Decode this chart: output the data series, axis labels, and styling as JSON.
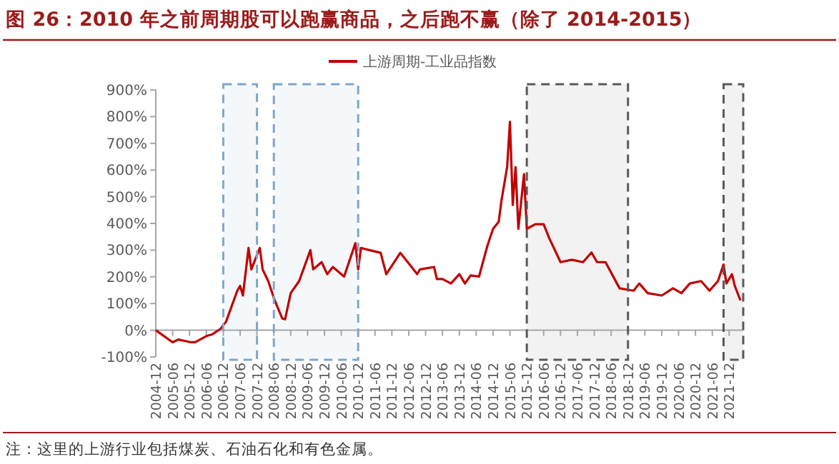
{
  "chart_data": {
    "type": "line",
    "title": "图 26：2010 年之前周期股可以跑赢商品，之后跑不赢（除了 2014-2015）",
    "annotations": [
      "注：这里的上游行业包括煤炭、石油石化和有色金属。"
    ],
    "legend": "top",
    "grid": false,
    "marker": "none",
    "line_style": "solid",
    "xlim": [
      "2004-12",
      "2022-05"
    ],
    "xticks": [
      "2004-12",
      "2005-06",
      "2005-12",
      "2006-06",
      "2006-12",
      "2007-06",
      "2007-12",
      "2008-06",
      "2008-12",
      "2009-06",
      "2009-12",
      "2010-06",
      "2010-12",
      "2011-06",
      "2011-12",
      "2012-06",
      "2012-12",
      "2013-06",
      "2013-12",
      "2014-06",
      "2014-12",
      "2015-06",
      "2015-12",
      "2016-06",
      "2016-12",
      "2017-06",
      "2017-12",
      "2018-06",
      "2018-12",
      "2019-06",
      "2019-12",
      "2020-06",
      "2020-12",
      "2021-06",
      "2021-12"
    ],
    "ylim": [
      -100,
      900
    ],
    "yticks": [
      {
        "value": -100,
        "label": "-100%"
      },
      {
        "value": 0,
        "label": "0%"
      },
      {
        "value": 100,
        "label": "100%"
      },
      {
        "value": 200,
        "label": "200%"
      },
      {
        "value": 300,
        "label": "300%"
      },
      {
        "value": 400,
        "label": "400%"
      },
      {
        "value": 500,
        "label": "500%"
      },
      {
        "value": 600,
        "label": "600%"
      },
      {
        "value": 700,
        "label": "700%"
      },
      {
        "value": 800,
        "label": "800%"
      },
      {
        "value": 900,
        "label": "900%"
      }
    ],
    "bands": [
      {
        "axis": "x",
        "from": "2006-12",
        "to": "2007-12",
        "color": "#7fa6c9"
      },
      {
        "axis": "x",
        "from": "2008-06",
        "to": "2010-12",
        "color": "#7fa6c9"
      },
      {
        "axis": "x",
        "from": "2015-12",
        "to": "2018-12",
        "color": "#595959"
      },
      {
        "axis": "x",
        "from": "2021-10",
        "to": "2022-05",
        "color": "#595959"
      }
    ],
    "series": [
      {
        "name": "上游周期-工业品指数",
        "color": "#c00000",
        "x": [
          "2004-12",
          "2005-06",
          "2005-08",
          "2005-12",
          "2006-02",
          "2006-06",
          "2006-08",
          "2006-11",
          "2007-01",
          "2007-05",
          "2007-06",
          "2007-07",
          "2007-09",
          "2007-10",
          "2008-01",
          "2008-02",
          "2008-04",
          "2008-06",
          "2008-07",
          "2008-09",
          "2008-10",
          "2008-12",
          "2009-03",
          "2009-07",
          "2009-08",
          "2009-11",
          "2010-01",
          "2010-03",
          "2010-07",
          "2010-11",
          "2010-12",
          "2011-01",
          "2011-04",
          "2011-08",
          "2011-10",
          "2012-03",
          "2012-07",
          "2012-09",
          "2012-10",
          "2013-03",
          "2013-04",
          "2013-06",
          "2013-09",
          "2013-12",
          "2014-02",
          "2014-04",
          "2014-07",
          "2014-10",
          "2014-12",
          "2015-02",
          "2015-03",
          "2015-05",
          "2015-06",
          "2015-07",
          "2015-08",
          "2015-09",
          "2015-11",
          "2015-12",
          "2016-03",
          "2016-06",
          "2016-08",
          "2016-12",
          "2017-04",
          "2017-08",
          "2017-11",
          "2018-01",
          "2018-04",
          "2018-09",
          "2019-02",
          "2019-04",
          "2019-07",
          "2019-12",
          "2020-04",
          "2020-07",
          "2020-10",
          "2021-02",
          "2021-05",
          "2021-08",
          "2021-10",
          "2021-11",
          "2022-01",
          "2022-02",
          "2022-04"
        ],
        "values": [
          0,
          -45,
          -35,
          -44,
          -45,
          -22,
          -16,
          5,
          32,
          148,
          166,
          130,
          308,
          228,
          308,
          228,
          184,
          121,
          94,
          44,
          41,
          139,
          184,
          300,
          228,
          255,
          210,
          237,
          201,
          326,
          228,
          308,
          300,
          290,
          210,
          290,
          237,
          210,
          228,
          237,
          192,
          192,
          175,
          210,
          175,
          205,
          201,
          317,
          380,
          406,
          487,
          611,
          781,
          469,
          611,
          380,
          585,
          380,
          397,
          397,
          344,
          255,
          264,
          255,
          291,
          255,
          255,
          157,
          148,
          175,
          139,
          130,
          157,
          139,
          175,
          184,
          148,
          184,
          246,
          175,
          210,
          166,
          112
        ]
      }
    ]
  }
}
